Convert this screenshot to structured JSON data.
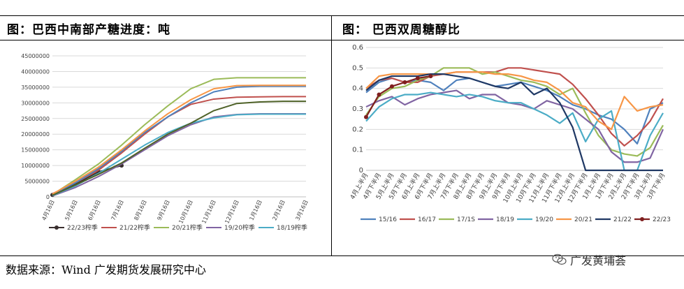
{
  "left_panel": {
    "title": "图：巴西中南部产糖进度：吨"
  },
  "right_panel": {
    "title": "图：  巴西双周糖醇比"
  },
  "source": "数据来源：Wind  广发期货发展研究中心",
  "watermark": "广发黄埔荟",
  "colors": {
    "s2223_left": "#3a2f2f",
    "s2122_left": "#c0504d",
    "s2021_left": "#9bbb59",
    "s1920_left": "#8064a2",
    "s1819_left": "#4bacc6"
  },
  "chart_data": [
    {
      "type": "line",
      "title": "",
      "ylim": [
        0,
        45000000
      ],
      "yticks": [
        "0",
        "5000000",
        "10000000",
        "15000000",
        "20000000",
        "25000000",
        "30000000",
        "35000000",
        "40000000",
        "45000000"
      ],
      "x_labels": [
        "4月16日",
        "5月16日",
        "6月16日",
        "7月16日",
        "8月16日",
        "9月16日",
        "10月16日",
        "11月16日",
        "12月16日",
        "1月16日",
        "2月16日",
        "3月16日"
      ],
      "grid": true,
      "legend_position": "bottom",
      "series": [
        {
          "name": "22/23榨季",
          "color": "#3a2f2f",
          "marker": "dot",
          "values": [
            600000,
            4000000,
            8000000,
            10000000
          ]
        },
        {
          "name": "21/22榨季",
          "color": "#c0504d",
          "marker": "none",
          "values": [
            1000000,
            4500000,
            8500000,
            14000000,
            20000000,
            25500000,
            29500000,
            31200000,
            31800000,
            31900000,
            32000000,
            32000000
          ]
        },
        {
          "name": "20/21榨季",
          "color": "#9bbb59",
          "marker": "none",
          "values": [
            700000,
            5500000,
            10500000,
            16500000,
            23000000,
            29000000,
            34500000,
            37500000,
            38000000,
            38000000,
            38000000,
            38000000
          ]
        },
        {
          "name": "19/20榨季",
          "color": "#8064a2",
          "marker": "none",
          "values": [
            300000,
            3000000,
            6500000,
            10500000,
            15000000,
            19500000,
            23000000,
            25500000,
            26300000,
            26500000,
            26500000,
            26500000
          ]
        },
        {
          "name": "18/19榨季",
          "color": "#4bacc6",
          "marker": "none",
          "values": [
            400000,
            3500000,
            7500000,
            12000000,
            16500000,
            20500000,
            23500000,
            25200000,
            26200000,
            26400000,
            26400000,
            26400000
          ]
        },
        {
          "name": "",
          "color": "#4f81bd",
          "marker": "none",
          "values": [
            800000,
            4500000,
            9000000,
            14500000,
            20500000,
            25500000,
            30000000,
            33500000,
            35000000,
            35300000,
            35300000,
            35300000
          ]
        },
        {
          "name": "",
          "color": "#f79646",
          "marker": "none",
          "values": [
            900000,
            5000000,
            9500000,
            15000000,
            21000000,
            26500000,
            31000000,
            34500000,
            35500000,
            35600000,
            35600000,
            35600000
          ]
        },
        {
          "name": "",
          "color": "#4f6228",
          "marker": "none",
          "values": [
            500000,
            3800000,
            7200000,
            10800000,
            15500000,
            20000000,
            23500000,
            27500000,
            29800000,
            30300000,
            30500000,
            30500000
          ]
        }
      ]
    },
    {
      "type": "line",
      "title": "",
      "ylim": [
        0,
        0.6
      ],
      "yticks": [
        "0",
        "0.1",
        "0.2",
        "0.3",
        "0.4",
        "0.5",
        "0.6"
      ],
      "x_labels": [
        "4月上半月",
        "4月下半月",
        "5月上半月",
        "5月下半月",
        "6月上半月",
        "6月下半月",
        "7月上半月",
        "7月下半月",
        "8月上半月",
        "8月下半月",
        "9月上半月",
        "9月下半月",
        "10月上半月",
        "10月下半月",
        "11月上半月",
        "11月下半月",
        "12月上半月",
        "12月下半月",
        "1月上半月",
        "1月下半月",
        "2月上半月",
        "2月下半月",
        "3月上半月",
        "3月下半月"
      ],
      "grid": true,
      "legend_position": "bottom",
      "series": [
        {
          "name": "15/16",
          "color": "#4f81bd",
          "marker": "none",
          "values": [
            0.38,
            0.43,
            0.45,
            0.43,
            0.44,
            0.43,
            0.39,
            0.44,
            0.45,
            0.43,
            0.41,
            0.42,
            0.43,
            0.41,
            0.39,
            0.36,
            0.32,
            0.3,
            0.27,
            0.25,
            0.2,
            0.13,
            0.3,
            0.33
          ]
        },
        {
          "name": "16/17",
          "color": "#c0504d",
          "marker": "none",
          "values": [
            0.4,
            0.44,
            0.45,
            0.43,
            0.43,
            0.46,
            0.47,
            0.48,
            0.48,
            0.48,
            0.48,
            0.5,
            0.5,
            0.49,
            0.48,
            0.47,
            0.42,
            0.35,
            0.27,
            0.18,
            0.12,
            0.17,
            0.24,
            0.35
          ]
        },
        {
          "name": "17/1S",
          "color": "#9bbb59",
          "marker": "none",
          "values": [
            0.27,
            0.36,
            0.4,
            0.41,
            0.44,
            0.46,
            0.5,
            0.5,
            0.5,
            0.47,
            0.48,
            0.46,
            0.44,
            0.43,
            0.41,
            0.37,
            0.4,
            0.28,
            0.17,
            0.1,
            0.08,
            0.07,
            0.11,
            0.22
          ]
        },
        {
          "name": "18/19",
          "color": "#8064a2",
          "marker": "none",
          "values": [
            0.31,
            0.34,
            0.36,
            0.32,
            0.35,
            0.37,
            0.38,
            0.39,
            0.35,
            0.37,
            0.37,
            0.33,
            0.32,
            0.3,
            0.34,
            0.32,
            0.3,
            0.25,
            0.2,
            0.09,
            0.04,
            0.04,
            0.06,
            0.2
          ]
        },
        {
          "name": "19/20",
          "color": "#4bacc6",
          "marker": "none",
          "values": [
            0.24,
            0.31,
            0.35,
            0.37,
            0.37,
            0.38,
            0.37,
            0.36,
            0.37,
            0.36,
            0.34,
            0.33,
            0.33,
            0.3,
            0.27,
            0.23,
            0.28,
            0.14,
            0.25,
            0.29,
            0.0,
            0.0,
            0.17,
            0.28
          ]
        },
        {
          "name": "20/21",
          "color": "#f79646",
          "marker": "none",
          "values": [
            0.4,
            0.46,
            0.47,
            0.47,
            0.47,
            0.47,
            0.47,
            0.48,
            0.48,
            0.48,
            0.47,
            0.47,
            0.46,
            0.44,
            0.43,
            0.39,
            0.33,
            0.31,
            0.24,
            0.2,
            0.36,
            0.29,
            0.31,
            0.32
          ]
        },
        {
          "name": "21/22",
          "color": "#1f3864",
          "marker": "none",
          "values": [
            0.39,
            0.44,
            0.46,
            0.46,
            0.46,
            0.47,
            0.47,
            0.46,
            0.45,
            0.43,
            0.41,
            0.4,
            0.43,
            0.37,
            0.4,
            0.33,
            0.21,
            0.0,
            0.0,
            0.0,
            0.0,
            0.0,
            0.0,
            0.0
          ]
        },
        {
          "name": "22/23",
          "color": "#7f1f1f",
          "marker": "dot",
          "values": [
            0.26,
            0.37,
            0.41,
            0.43,
            0.45,
            0.46
          ]
        }
      ]
    }
  ]
}
